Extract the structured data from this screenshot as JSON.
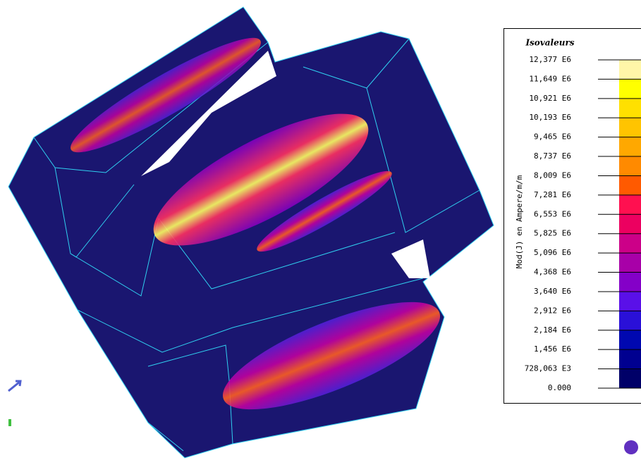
{
  "legend": {
    "title": "Isovaleurs",
    "quantity_label": "Mod(J) en Ampere/m/m",
    "levels": [
      "12,377 E6",
      "11,649 E6",
      "10,921 E6",
      "10,193 E6",
      "9,465 E6",
      "8,737 E6",
      "8,009 E6",
      "7,281 E6",
      "6,553 E6",
      "5,825 E6",
      "5,096 E6",
      "4,368 E6",
      "3,640 E6",
      "2,912 E6",
      "2,184 E6",
      "1,456 E6",
      "728,063 E3",
      "0.000"
    ],
    "colors": [
      "#fff6a8",
      "#ffff00",
      "#ffe000",
      "#ffc400",
      "#ffa800",
      "#ff8a00",
      "#ff5a00",
      "#ff1050",
      "#ec0060",
      "#cc0088",
      "#a800a8",
      "#8400c8",
      "#5a10e8",
      "#2a10d8",
      "#0008b0",
      "#000090",
      "#000068"
    ]
  }
}
